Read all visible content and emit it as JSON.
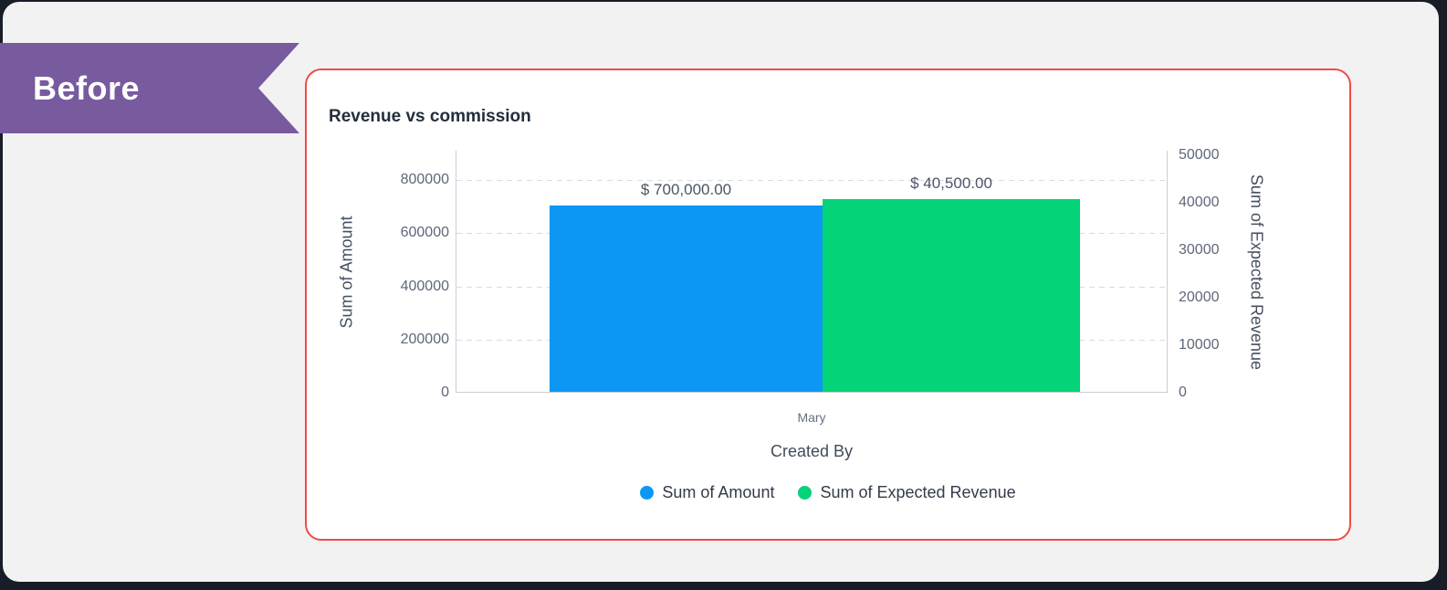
{
  "page": {
    "outer_bg": "#181d27",
    "panel_bg": "#f2f2f3"
  },
  "badge": {
    "label": "Before",
    "bg_color": "#785a9f",
    "text_color": "#ffffff"
  },
  "card": {
    "bg_color": "#ffffff",
    "border_color": "#ef4c45"
  },
  "chart_data": {
    "type": "bar",
    "title": "Revenue vs commission",
    "categories": [
      "Mary"
    ],
    "xlabel": "Created By",
    "grid": "dashed-horizontal",
    "legend_position": "bottom",
    "axes": {
      "left": {
        "label": "Sum of Amount",
        "ticks": [
          0,
          200000,
          400000,
          600000,
          800000
        ],
        "range": [
          0,
          800000
        ]
      },
      "right": {
        "label": "Sum of Expected Revenue",
        "ticks": [
          0,
          10000,
          20000,
          30000,
          40000,
          50000
        ],
        "range": [
          0,
          50000
        ]
      }
    },
    "series": [
      {
        "name": "Sum of Amount",
        "axis": "left",
        "color": "#0d97f5",
        "values": [
          700000
        ],
        "data_labels": [
          "$ 700,000.00"
        ]
      },
      {
        "name": "Sum of Expected Revenue",
        "axis": "right",
        "color": "#04d377",
        "values": [
          40500
        ],
        "data_labels": [
          "$ 40,500.00"
        ]
      }
    ]
  }
}
